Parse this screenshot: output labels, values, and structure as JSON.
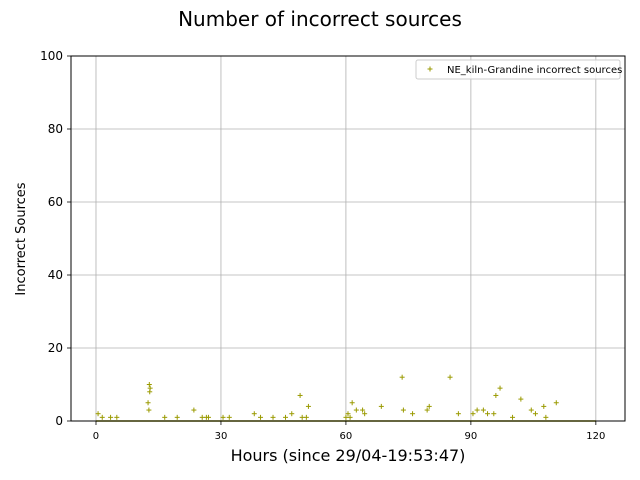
{
  "chart_data": {
    "type": "scatter",
    "title": "Number of incorrect sources",
    "xlabel": "Hours (since 29/04-19:53:47)",
    "ylabel": "Incorrect Sources",
    "xlim": [
      -6,
      127
    ],
    "ylim": [
      0,
      100
    ],
    "xticks": [
      0,
      30,
      60,
      90,
      120
    ],
    "yticks": [
      0,
      20,
      40,
      60,
      80,
      100
    ],
    "grid": true,
    "legend_position": "top-right",
    "marker": "+",
    "series": [
      {
        "name": "NE_kiln-Grandine incorrect sources",
        "color": "#9a9a00",
        "x": [
          0.5,
          1.5,
          3.5,
          5.0,
          12.5,
          12.7,
          12.8,
          13.0,
          12.9,
          16.5,
          19.5,
          23.5,
          25.5,
          26.5,
          27.0,
          30.5,
          32.0,
          38.0,
          39.5,
          42.5,
          45.5,
          47.0,
          49.0,
          49.5,
          50.5,
          51.0,
          60.0,
          60.5,
          61.0,
          61.5,
          62.5,
          64.0,
          64.5,
          68.5,
          73.5,
          73.8,
          76.0,
          79.5,
          80.0,
          85.0,
          87.0,
          90.5,
          91.5,
          93.0,
          94.0,
          95.5,
          96.0,
          97.0,
          100.0,
          102.0,
          104.5,
          105.5,
          107.5,
          108.0,
          110.5
        ],
        "y": [
          2,
          1,
          1,
          1,
          5,
          3,
          10,
          9,
          8,
          1,
          1,
          3,
          1,
          1,
          1,
          1,
          1,
          2,
          1,
          1,
          1,
          2,
          7,
          1,
          1,
          4,
          1,
          2,
          1,
          5,
          3,
          3,
          2,
          4,
          12,
          3,
          2,
          3,
          4,
          12,
          2,
          2,
          3,
          3,
          2,
          2,
          7,
          9,
          1,
          6,
          3,
          2,
          4,
          1,
          5
        ],
        "baseline": {
          "x_start": 0,
          "x_end": 120,
          "y": 0
        }
      }
    ]
  }
}
